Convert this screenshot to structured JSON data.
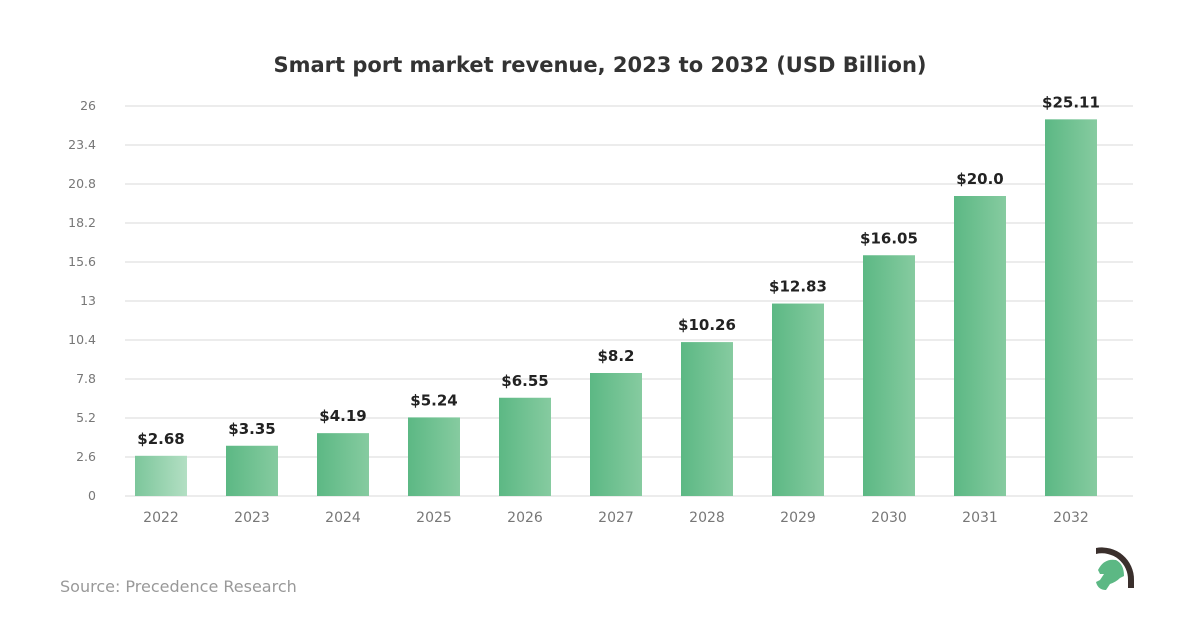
{
  "chart_data": {
    "type": "bar",
    "title": "Smart port market revenue, 2023 to 2032 (USD Billion)",
    "xlabel": "",
    "ylabel": "",
    "categories": [
      "2022",
      "2023",
      "2024",
      "2025",
      "2026",
      "2027",
      "2028",
      "2029",
      "2030",
      "2031",
      "2032"
    ],
    "values": [
      2.68,
      3.35,
      4.19,
      5.24,
      6.55,
      8.2,
      10.26,
      12.83,
      16.05,
      20.0,
      25.11
    ],
    "data_labels": [
      "$2.68",
      "$3.35",
      "$4.19",
      "$5.24",
      "$6.55",
      "$8.2",
      "$10.26",
      "$12.83",
      "$16.05",
      "$20.0",
      "$25.11"
    ],
    "yticks": [
      "0",
      "2.6",
      "5.2",
      "7.8",
      "10.4",
      "13",
      "15.6",
      "18.2",
      "20.8",
      "23.4",
      "26"
    ],
    "ylim": [
      0,
      26
    ],
    "grid": true,
    "legend": "none",
    "colors": {
      "bar_start": "#5cb884",
      "bar_end": "#86cba0",
      "first_bar_start": "#7cc69b",
      "first_bar_end": "#b3dfc3",
      "grid": "#d9d9d9"
    }
  },
  "footer": {
    "source": "Source: Precedence Research"
  },
  "logo": {
    "icon": "helmet-logo-icon",
    "colors": {
      "dark": "#3a2f2c",
      "green": "#5cb884"
    }
  }
}
